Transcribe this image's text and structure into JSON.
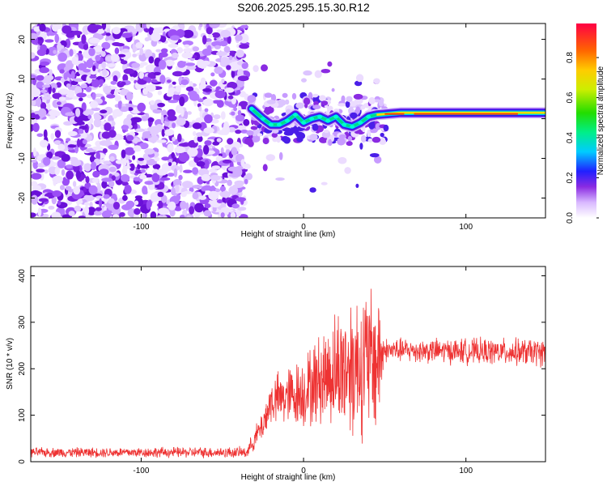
{
  "title": "S206.2025.295.15.30.R12",
  "chart_data": [
    {
      "type": "heatmap",
      "xlabel": "Height of straight line (km)",
      "ylabel": "Frequency (Hz)",
      "xlim": [
        -168,
        149
      ],
      "ylim": [
        -25,
        24
      ],
      "xticks": [
        -100,
        0,
        100
      ],
      "xtick_labels": [
        "-100",
        "0",
        "100"
      ],
      "yticks": [
        -20,
        -10,
        0,
        10,
        20
      ],
      "ytick_labels": [
        "-20",
        "-10",
        "0",
        "10",
        "20"
      ],
      "noise_region_x": [
        -168,
        -35
      ],
      "signal_track": [
        {
          "x": -32,
          "y": 2.5
        },
        {
          "x": -25,
          "y": 0
        },
        {
          "x": -20,
          "y": -1.5
        },
        {
          "x": -15,
          "y": -1.5
        },
        {
          "x": -10,
          "y": -0.5
        },
        {
          "x": -5,
          "y": 1
        },
        {
          "x": 0,
          "y": -1
        },
        {
          "x": 5,
          "y": 0
        },
        {
          "x": 10,
          "y": 0.5
        },
        {
          "x": 15,
          "y": -0.5
        },
        {
          "x": 20,
          "y": 0.5
        },
        {
          "x": 25,
          "y": -1.5
        },
        {
          "x": 30,
          "y": -2
        },
        {
          "x": 35,
          "y": -1
        },
        {
          "x": 40,
          "y": 0.5
        },
        {
          "x": 45,
          "y": 1
        },
        {
          "x": 60,
          "y": 1.5
        },
        {
          "x": 80,
          "y": 1.5
        },
        {
          "x": 100,
          "y": 1.5
        },
        {
          "x": 120,
          "y": 1.5
        },
        {
          "x": 149,
          "y": 1.5
        }
      ],
      "colorbar": {
        "label": "Normalized spectral amplitude",
        "range": [
          0,
          0.97
        ],
        "ticks": [
          0.0,
          0.2,
          0.4,
          0.6,
          0.8
        ],
        "tick_labels": [
          "0.0",
          "0.2",
          "0.4",
          "0.6",
          "0.8"
        ]
      }
    },
    {
      "type": "line",
      "xlabel": "Height of straight line (km)",
      "ylabel": "SNR (10 * v/v)",
      "xlim": [
        -168,
        149
      ],
      "ylim": [
        0,
        420
      ],
      "xticks": [
        -100,
        0,
        100
      ],
      "xtick_labels": [
        "-100",
        "0",
        "100"
      ],
      "yticks": [
        0,
        100,
        200,
        300,
        400
      ],
      "ytick_labels": [
        "0",
        "100",
        "200",
        "300",
        "400"
      ],
      "color": "#ee3333",
      "series_profile": [
        {
          "x": -168,
          "mean": 20,
          "spread": 12
        },
        {
          "x": -35,
          "mean": 20,
          "spread": 14
        },
        {
          "x": -25,
          "mean": 80,
          "spread": 40
        },
        {
          "x": -20,
          "mean": 130,
          "spread": 60
        },
        {
          "x": 0,
          "mean": 150,
          "spread": 90
        },
        {
          "x": 15,
          "mean": 190,
          "spread": 130
        },
        {
          "x": 30,
          "mean": 210,
          "spread": 190
        },
        {
          "x": 46,
          "mean": 220,
          "spread": 190
        },
        {
          "x": 50,
          "mean": 240,
          "spread": 30
        },
        {
          "x": 149,
          "mean": 235,
          "spread": 35
        }
      ]
    }
  ]
}
